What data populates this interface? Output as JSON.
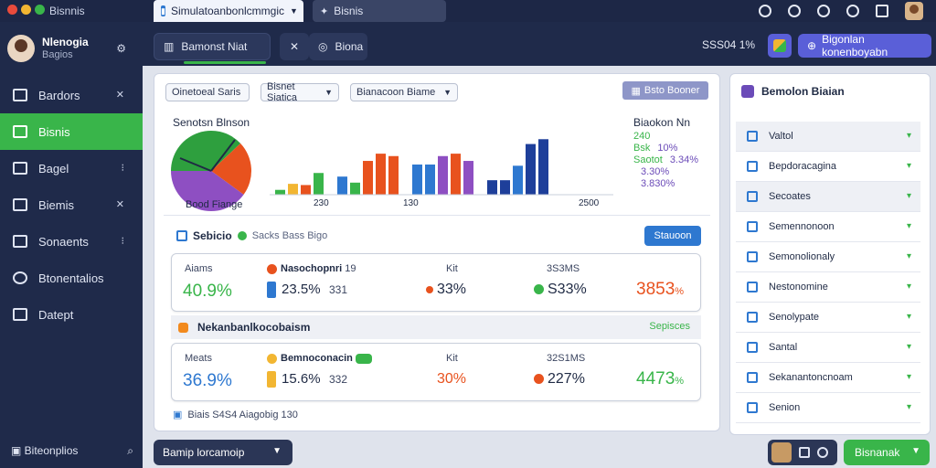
{
  "colors": {
    "accent_green": "#39b54a",
    "navy": "#1f2a4a",
    "blue": "#2e78d0",
    "orange": "#e8521e",
    "violet": "#5a5fd8"
  },
  "window": {
    "app_title": "Bisnnis",
    "tabs": [
      {
        "label": "Simulatoanbonlcmmgic",
        "icon": "window-icon"
      },
      {
        "label": "Bisnis",
        "icon": "sparkle-icon"
      }
    ]
  },
  "profile": {
    "name": "Nlenogia",
    "subtitle": "Bagios"
  },
  "sidebar": {
    "items": [
      {
        "label": "Bardors",
        "icon": "list-icon",
        "active": false
      },
      {
        "label": "Bisnis",
        "icon": "shuffle-icon",
        "active": true
      },
      {
        "label": "Bagel",
        "icon": "grid-icon",
        "active": false
      },
      {
        "label": "Biemis",
        "icon": "document-icon",
        "active": false
      },
      {
        "label": "Sonaents",
        "icon": "folder-icon",
        "active": false
      },
      {
        "label": "Btonentalios",
        "icon": "gauge-icon",
        "active": false
      },
      {
        "label": "Datept",
        "icon": "export-icon",
        "active": false
      }
    ],
    "bottom_label": "Biteonplios"
  },
  "toolbar": {
    "main_label": "Bamonst Niat",
    "flow_label": "Biona",
    "status": "SSS04 1%",
    "primary_button": "Bigonlan konenboyabn"
  },
  "filters": [
    "Oinetoeal Saris",
    "Bisnet Siatica",
    "Bianacoon Biame"
  ],
  "card_action": "Bsto Booner",
  "chart_data": {
    "type": "bar",
    "title": "Senotsn Blnson",
    "pie_label": "Bood Fiange",
    "x_tick_labels": [
      "230",
      "130",
      "2500"
    ],
    "legend_title": "Biaokon Nn",
    "legend_entries": [
      {
        "label": "240",
        "value": ""
      },
      {
        "label": "Bsk",
        "value": "10%"
      },
      {
        "label": "Saotot",
        "value": "3.34%"
      },
      {
        "label": "",
        "value": "3.30%"
      },
      {
        "label": "",
        "value": "3.830%"
      }
    ],
    "pie_slices": [
      {
        "value": 38,
        "color": "#2e9f3e"
      },
      {
        "value": 22,
        "color": "#e8521e"
      },
      {
        "value": 40,
        "color": "#8e4fc2"
      }
    ],
    "groups": [
      {
        "values": [
          4,
          9,
          8,
          18
        ],
        "colors": [
          "#39b54a",
          "#f2b632",
          "#e8521e",
          "#39b54a"
        ]
      },
      {
        "values": [
          15,
          10,
          28,
          34,
          32
        ],
        "colors": [
          "#2e78d0",
          "#39b54a",
          "#e8521e",
          "#e8521e",
          "#e8521e"
        ]
      },
      {
        "values": [
          25,
          25,
          32,
          34,
          28
        ],
        "colors": [
          "#2e78d0",
          "#2e78d0",
          "#8e4fc2",
          "#e8521e",
          "#8e4fc2"
        ]
      },
      {
        "values": [
          12,
          12,
          24,
          42,
          46
        ],
        "colors": [
          "#1e3f9a",
          "#1e3f9a",
          "#2e78d0",
          "#1e3f9a",
          "#1e3f9a"
        ]
      }
    ],
    "ylim": [
      0,
      50
    ]
  },
  "section": {
    "title": "Sebicio",
    "tag": "Sacks Bass Bigo",
    "button": "Stauoon"
  },
  "metrics": [
    {
      "label": "Aiams",
      "value": "40.9%",
      "value_color": "#39b54a",
      "sub_label": "Nasochopnri",
      "sub_code": "19",
      "sub_value": "23.5%",
      "sub_extra": "331",
      "col3_label": "Kit",
      "col3_value": "33%",
      "col4_label": "3S3MS",
      "col4_value": "S33%",
      "col5_value": "3853",
      "col5_suffix": "%",
      "col5_color": "#e8521e"
    },
    {
      "label": "Meats",
      "value": "36.9%",
      "value_color": "#2e78d0",
      "sub_label": "Bemnoconacin",
      "sub_code": "",
      "sub_value": "15.6%",
      "sub_extra": "332",
      "col3_label": "Kit",
      "col3_value": "30%",
      "col4_label": "32S1MS",
      "col4_value": "227%",
      "col5_value": "4473",
      "col5_suffix": "%",
      "col5_color": "#39b54a"
    }
  ],
  "group": {
    "title": "Nekanbanlkocobaism",
    "right": "Sepisces"
  },
  "footnote": "Biais S4S4 Aiagobig 130",
  "right_panel": {
    "title": "Bemolon Biaian",
    "items": [
      {
        "label": "Valtol",
        "icon": "square-icon",
        "selected": true
      },
      {
        "label": "Bepdoracagina",
        "icon": "tag-icon",
        "selected": false
      },
      {
        "label": "Secoates",
        "icon": "flow-icon",
        "selected": true
      },
      {
        "label": "Semennonoon",
        "icon": "refresh-icon",
        "selected": false
      },
      {
        "label": "Semonolionaly",
        "icon": "chart-icon",
        "selected": false
      },
      {
        "label": "Nestonomine",
        "icon": "check-icon",
        "selected": false
      },
      {
        "label": "Senolypate",
        "icon": "calendar-icon",
        "selected": false
      },
      {
        "label": "Santal",
        "icon": "target-icon",
        "selected": false
      },
      {
        "label": "Sekanantoncnoam",
        "icon": "circle-icon",
        "selected": false
      },
      {
        "label": "Senion",
        "icon": "flag-icon",
        "selected": false
      }
    ]
  },
  "bottom": {
    "select_label": "Bamip lorcamoip",
    "green_button": "Bisnanak"
  }
}
